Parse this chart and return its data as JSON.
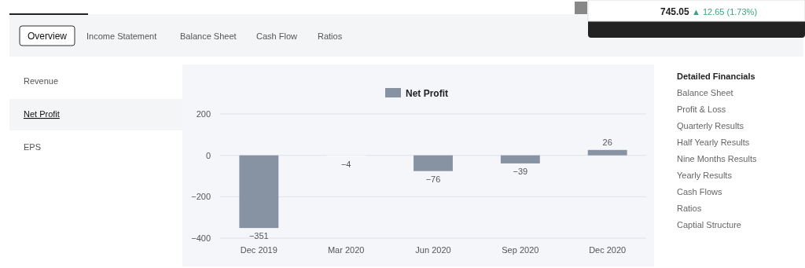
{
  "chart_data": {
    "type": "bar",
    "categories": [
      "Dec 2019",
      "Mar 2020",
      "Jun 2020",
      "Sep 2020",
      "Dec 2020"
    ],
    "series": [
      {
        "name": "Net Profit",
        "color": "#8792a2",
        "colors": [
          "#8792a2",
          "#ffffff",
          "#8792a2",
          "#8792a2",
          "#8792a2"
        ],
        "values": [
          -351,
          -4,
          -76,
          -39,
          26
        ]
      }
    ],
    "ylim": [
      -400,
      200
    ],
    "yticks": [
      -400,
      -200,
      0,
      200
    ],
    "grid": "y",
    "legend": "top",
    "data_labels": true,
    "annotations": [
      "Overview",
      "Income Statement",
      "Balance Sheet",
      "Cash Flow",
      "Ratios",
      "Revenue",
      "Net Profit",
      "EPS",
      "Detailed Financials",
      "Balance Sheet",
      "Profit & Loss",
      "Quarterly Results",
      "Half Yearly Results",
      "Nine Months Results",
      "Yearly Results",
      "Cash Flows",
      "Ratios",
      "Captial Structure",
      "745.05",
      "▲ 12.65 (1.73%)"
    ]
  }
}
